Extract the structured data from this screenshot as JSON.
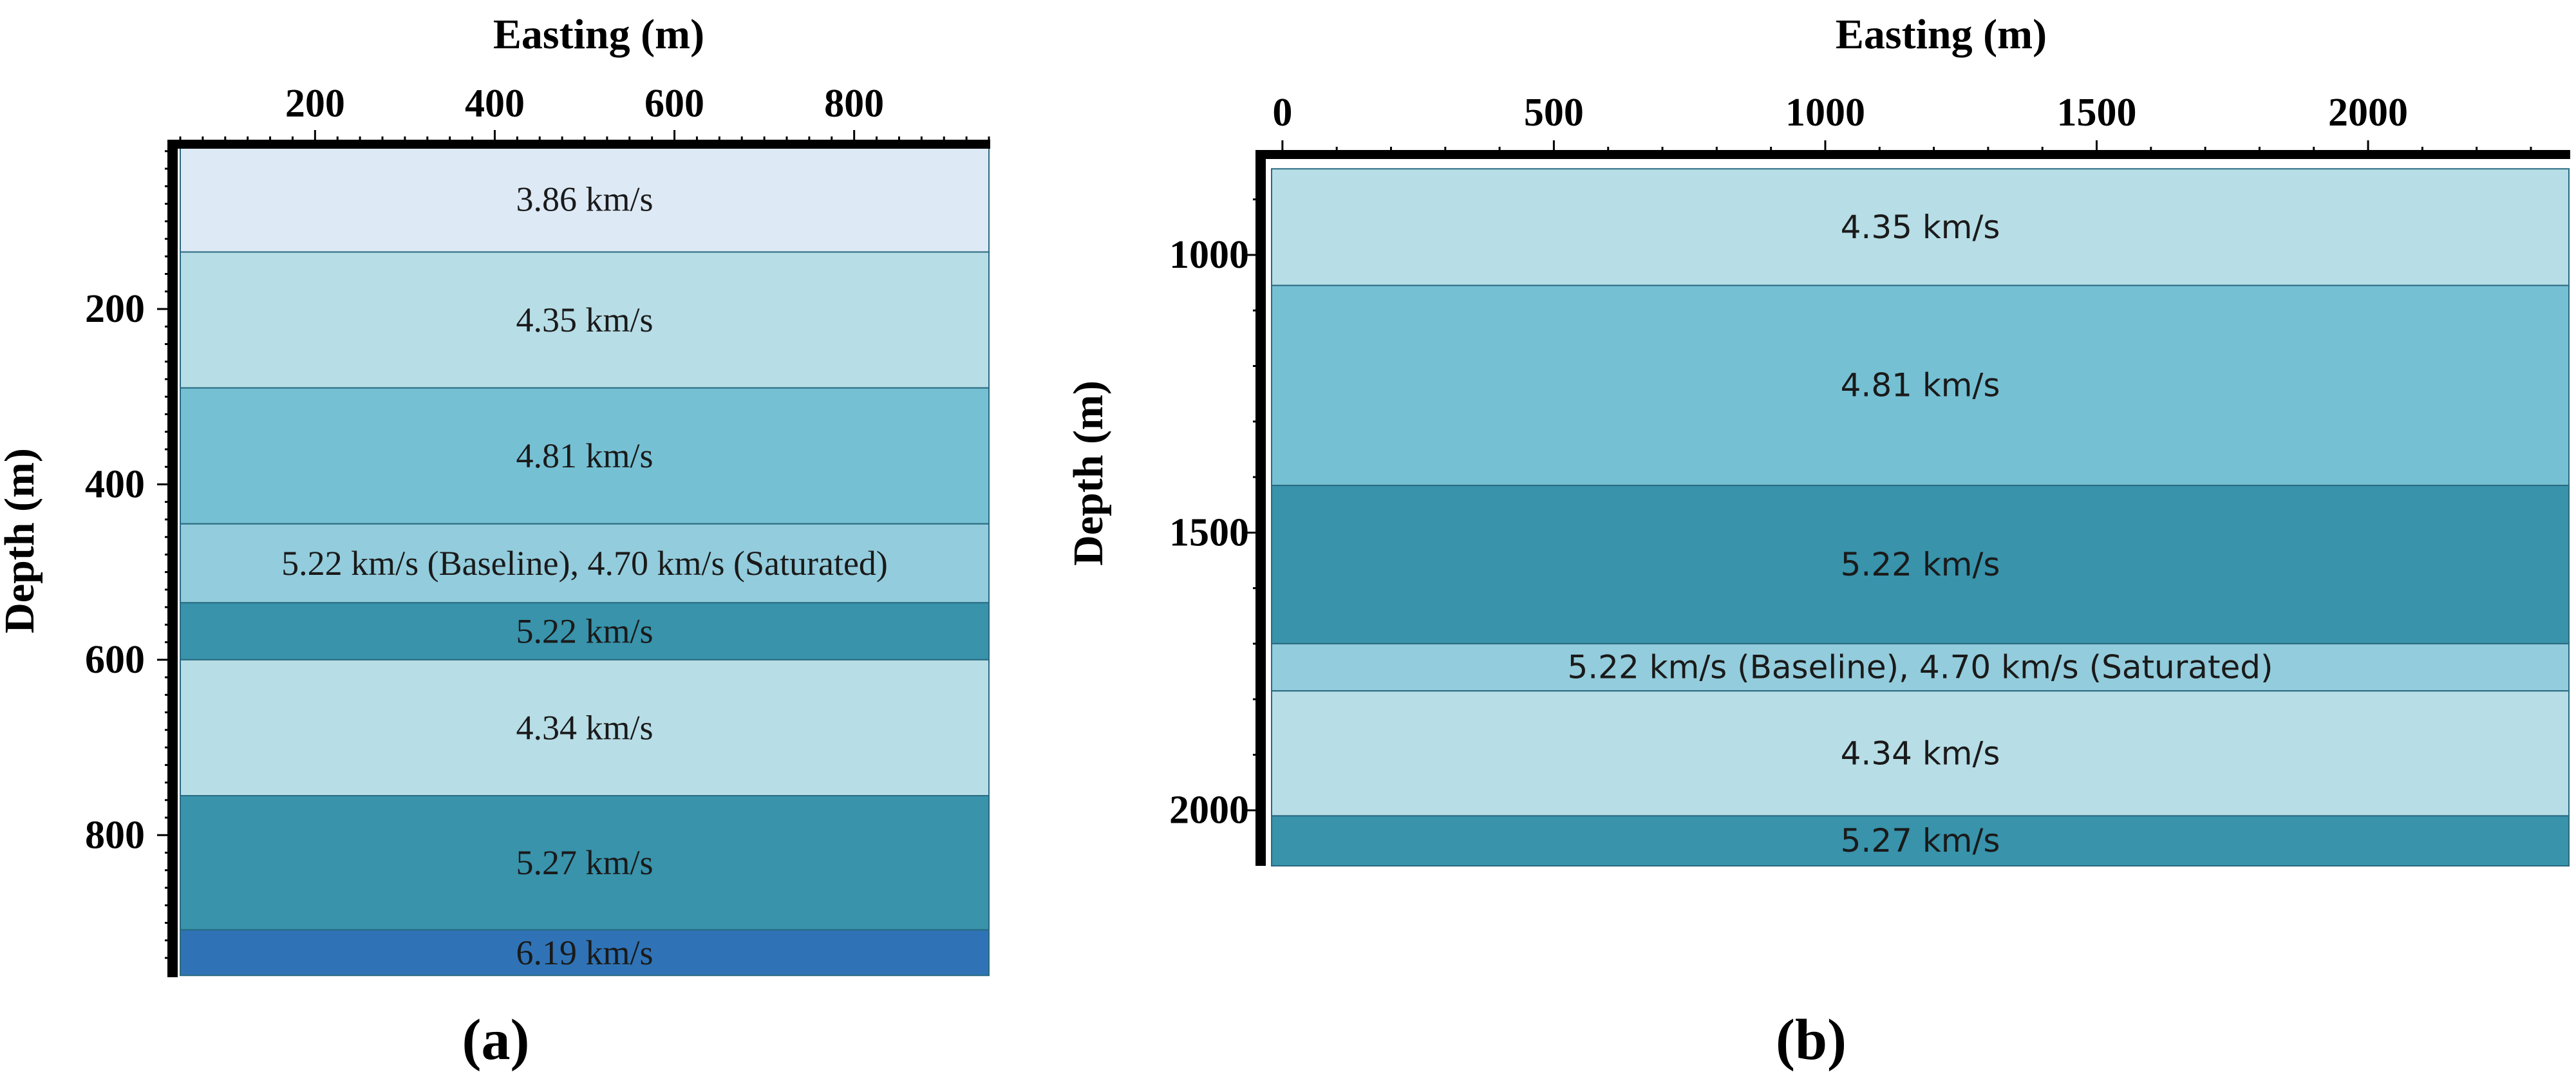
{
  "colors": {
    "v386": "#dde9f5",
    "v434": "#b7dde6",
    "v435": "#b7dde6",
    "v481": "#76c0d4",
    "v522": "#3893ab",
    "v522_sat": "#93ccdc",
    "v527": "#3893ab",
    "v619": "#2f73b6",
    "boundary": "#2a6a80",
    "axis": "#000000"
  },
  "chart_data": [
    {
      "type": "bar",
      "panel_label": "(a)",
      "xlabel": "Easting (m)",
      "ylabel": "Depth (m)",
      "xlim": [
        50,
        950
      ],
      "ylim": [
        940,
        15
      ],
      "xticks": [
        200,
        400,
        600,
        800
      ],
      "xtick_labels": [
        "200",
        "400",
        "600",
        "800"
      ],
      "yticks": [
        200,
        400,
        600,
        800
      ],
      "ytick_labels": [
        "200",
        "400",
        "600",
        "800"
      ],
      "layers": [
        {
          "top": 15,
          "bottom": 135,
          "label": "3.86 km/s",
          "color": "v386"
        },
        {
          "top": 135,
          "bottom": 290,
          "label": "4.35 km/s",
          "color": "v435"
        },
        {
          "top": 290,
          "bottom": 445,
          "label": "4.81 km/s",
          "color": "v481"
        },
        {
          "top": 445,
          "bottom": 535,
          "label": "5.22 km/s (Baseline), 4.70 km/s (Saturated)",
          "color": "v522_sat"
        },
        {
          "top": 535,
          "bottom": 600,
          "label": "5.22 km/s",
          "color": "v522"
        },
        {
          "top": 600,
          "bottom": 755,
          "label": "4.34 km/s",
          "color": "v434"
        },
        {
          "top": 755,
          "bottom": 908,
          "label": "5.27 km/s",
          "color": "v527"
        },
        {
          "top": 908,
          "bottom": 960,
          "label": "6.19 km/s",
          "color": "v619"
        }
      ]
    },
    {
      "type": "bar",
      "panel_label": "(b)",
      "xlabel": "Easting (m)",
      "ylabel": "Depth (m)",
      "xlim": [
        -20,
        2370
      ],
      "ylim": [
        2100,
        825
      ],
      "xticks": [
        0,
        500,
        1000,
        1500,
        2000
      ],
      "xtick_labels": [
        "0",
        "500",
        "1000",
        "1500",
        "2000"
      ],
      "yticks": [
        1000,
        1500,
        2000
      ],
      "ytick_labels": [
        "1000",
        "1500",
        "2000"
      ],
      "layers": [
        {
          "top": 845,
          "bottom": 1055,
          "label": "4.35 km/s",
          "color": "v435"
        },
        {
          "top": 1055,
          "bottom": 1415,
          "label": "4.81 km/s",
          "color": "v481"
        },
        {
          "top": 1415,
          "bottom": 1700,
          "label": "5.22 km/s",
          "color": "v522"
        },
        {
          "top": 1700,
          "bottom": 1785,
          "label": "5.22 km/s (Baseline), 4.70 km/s (Saturated)",
          "color": "v522_sat"
        },
        {
          "top": 1785,
          "bottom": 2010,
          "label": "4.34 km/s",
          "color": "v434"
        },
        {
          "top": 2010,
          "bottom": 2125,
          "label": "5.27 km/s",
          "color": "v527"
        }
      ]
    }
  ]
}
